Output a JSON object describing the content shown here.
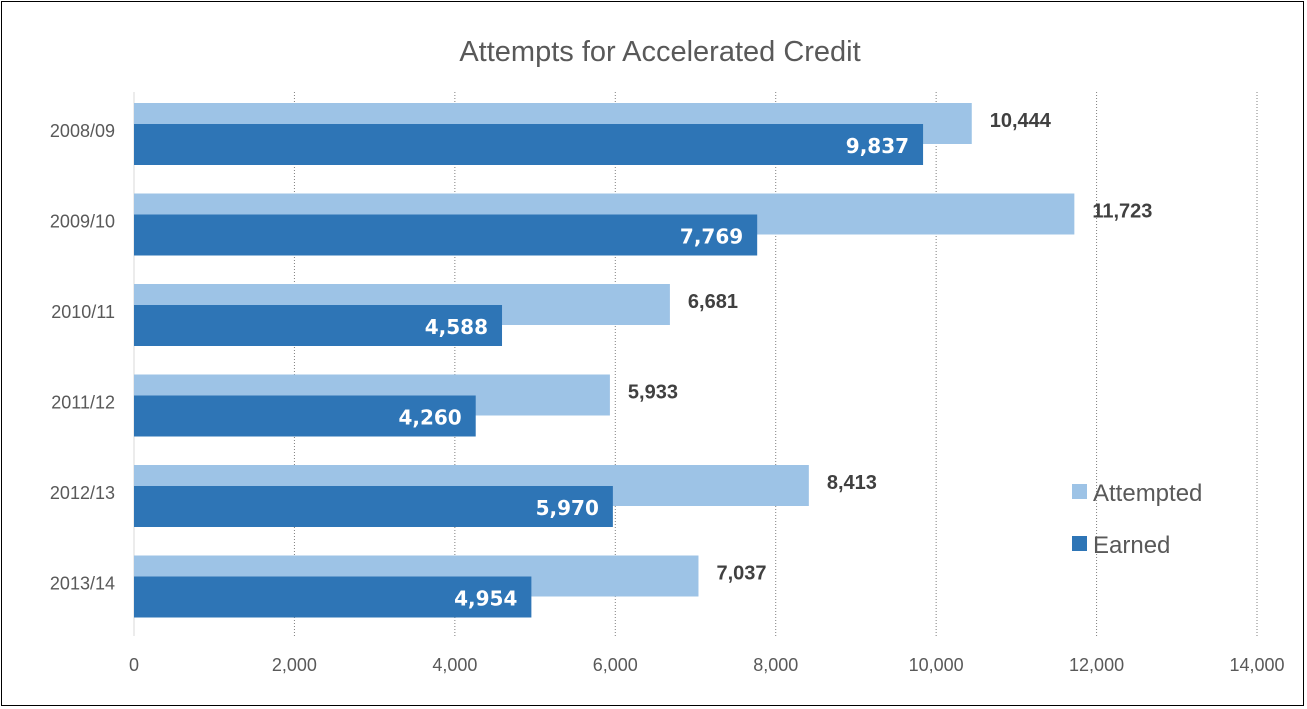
{
  "chart_data": {
    "type": "bar",
    "orientation": "horizontal",
    "title": "Attempts for Accelerated Credit",
    "categories": [
      "2008/09",
      "2009/10",
      "2010/11",
      "2011/12",
      "2012/13",
      "2013/14"
    ],
    "series": [
      {
        "name": "Attempted",
        "values": [
          10444,
          11723,
          6681,
          5933,
          8413,
          7037
        ],
        "labels": [
          "10,444",
          "11,723",
          "6,681",
          "5,933",
          "8,413",
          "7,037"
        ],
        "color": "#9DC3E6"
      },
      {
        "name": "Earned",
        "values": [
          9837,
          7769,
          4588,
          4260,
          5970,
          4954
        ],
        "labels": [
          "9,837",
          "7,769",
          "4,588",
          "4,260",
          "5,970",
          "4,954"
        ],
        "color": "#2E75B6"
      }
    ],
    "xlim": [
      0,
      14000
    ],
    "xticks": [
      0,
      2000,
      4000,
      6000,
      8000,
      10000,
      12000,
      14000
    ],
    "xtick_labels": [
      "0",
      "2,000",
      "4,000",
      "6,000",
      "8,000",
      "10,000",
      "12,000",
      "14,000"
    ],
    "grid": "vertical dotted",
    "legend": "right"
  }
}
